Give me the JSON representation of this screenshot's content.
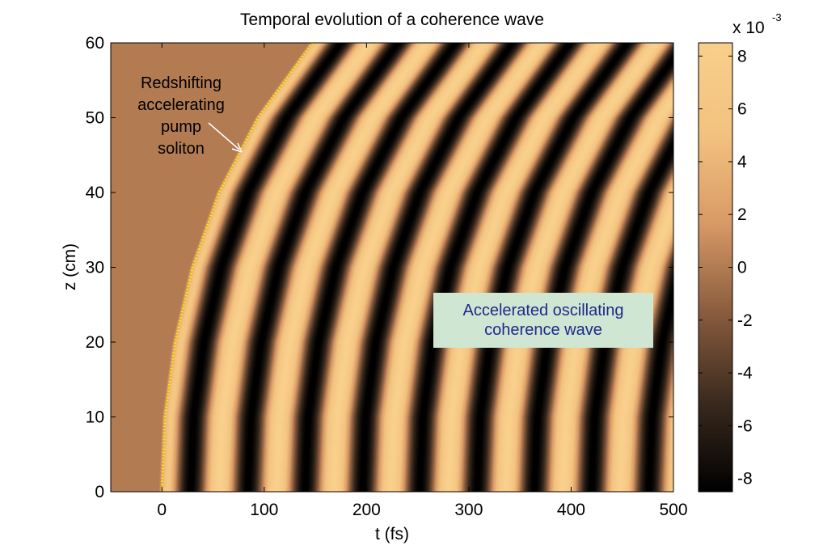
{
  "chart_data": {
    "type": "heatmap",
    "title": "Temporal evolution of a  coherence wave",
    "xlabel": "t (fs)",
    "ylabel": "z (cm)",
    "xlim": [
      -50,
      500
    ],
    "ylim": [
      0,
      60
    ],
    "x_ticks": [
      "0",
      "100",
      "200",
      "300",
      "400",
      "500"
    ],
    "y_ticks": [
      "0",
      "10",
      "20",
      "30",
      "40",
      "50",
      "60"
    ],
    "colorbar": {
      "exponent_label": "x 10",
      "exponent_power": "-3",
      "range": [
        -8.5,
        8.5
      ],
      "ticks": [
        "8",
        "6",
        "4",
        "2",
        "0",
        "-2",
        "-4",
        "-6",
        "-8"
      ],
      "colormap": [
        "#000000",
        "#3a2a1e",
        "#8a5c3e",
        "#d99a66",
        "#f3c27f",
        "#f8cf8b"
      ]
    },
    "background_value": 0,
    "field": {
      "oscillation_period_fs": 56,
      "front_delay_fs_at_z": [
        {
          "z": 0,
          "t": 0
        },
        {
          "z": 10,
          "t": 3
        },
        {
          "z": 20,
          "t": 13
        },
        {
          "z": 30,
          "t": 30
        },
        {
          "z": 40,
          "t": 56
        },
        {
          "z": 50,
          "t": 94
        },
        {
          "z": 60,
          "t": 147
        }
      ]
    },
    "soliton_trajectory": {
      "style": "dotted",
      "color": "#ffe600",
      "points": [
        [
          0,
          0
        ],
        [
          3,
          10
        ],
        [
          13,
          20
        ],
        [
          30,
          30
        ],
        [
          56,
          40
        ],
        [
          94,
          50
        ],
        [
          147,
          60
        ]
      ]
    },
    "annotations": [
      {
        "name": "soliton-label",
        "lines": [
          "Redshifting",
          "accelerating",
          "pump",
          "soliton"
        ],
        "color": "#ffffff"
      },
      {
        "name": "wave-label",
        "lines": [
          "Accelerated oscillating",
          "coherence wave"
        ],
        "color": "#1d2a8a",
        "background": "#cfe6d2"
      }
    ]
  }
}
